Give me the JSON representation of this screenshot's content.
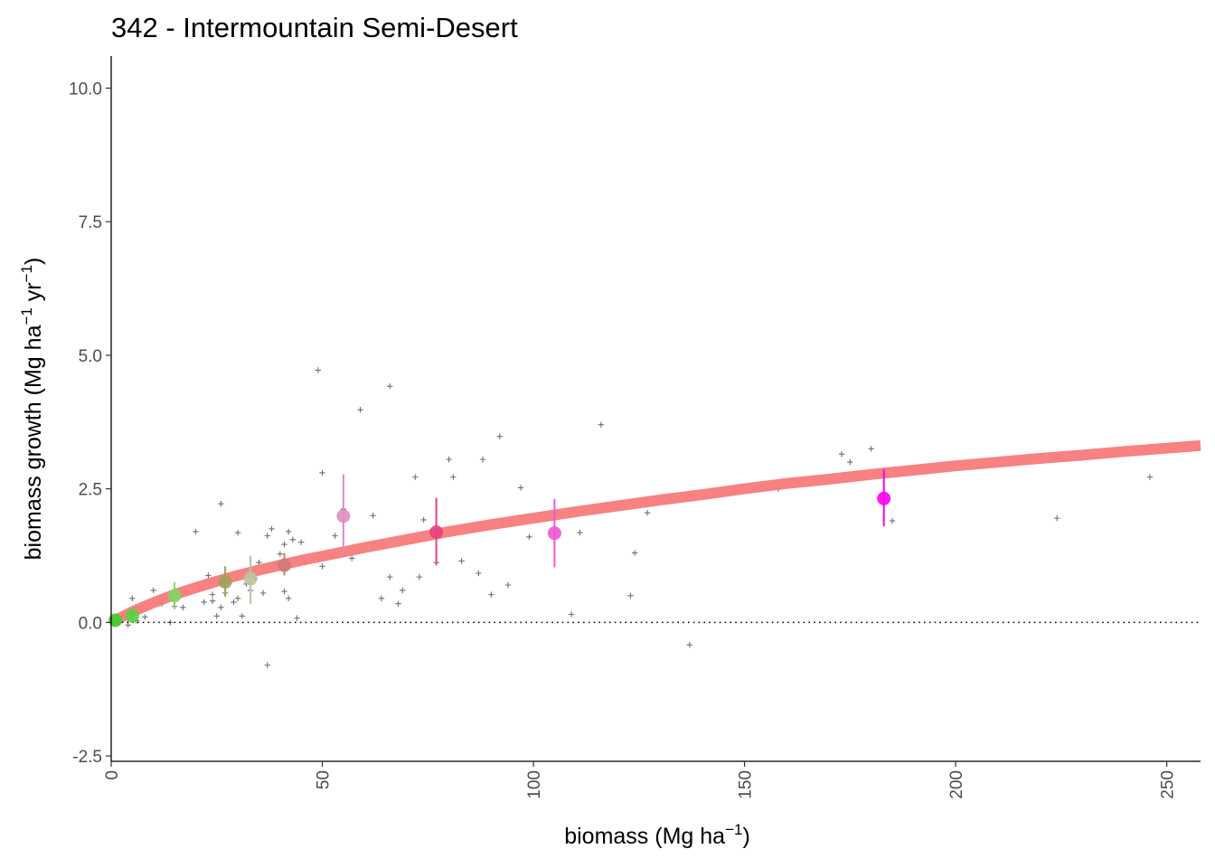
{
  "chart_data": {
    "type": "scatter",
    "title": "342 - Intermountain Semi-Desert",
    "xlabel": {
      "main": "biomass (Mg ha",
      "sup": "−1",
      "close": ")"
    },
    "ylabel": {
      "main": "biomass growth (Mg ha",
      "sup1": "−1",
      "mid": " yr",
      "sup2": "−1",
      "close": ")"
    },
    "xlim": [
      0,
      258
    ],
    "ylim": [
      -2.6,
      10.6
    ],
    "x_ticks": [
      0,
      50,
      100,
      150,
      200,
      250
    ],
    "x_tick_labels": [
      "0",
      "50",
      "100",
      "150",
      "200",
      "250"
    ],
    "y_ticks": [
      -2.5,
      0,
      2.5,
      5,
      7.5,
      10
    ],
    "y_tick_labels": [
      "-2.5",
      "0.0",
      "2.5",
      "5.0",
      "7.5",
      "10.0"
    ],
    "grid": false,
    "reference_line": {
      "y": 0,
      "style": "dotted"
    },
    "colors": {
      "fit": "#f87a7a",
      "raw_points": "#6f6f6f",
      "axis": "#000000"
    },
    "fit_curve": {
      "x": [
        0,
        5,
        10,
        15,
        20,
        25,
        30,
        35,
        40,
        45,
        50,
        55,
        60,
        70,
        80,
        90,
        100,
        110,
        120,
        130,
        140,
        150,
        160,
        170,
        180,
        190,
        200,
        210,
        220,
        230,
        240,
        250,
        258
      ],
      "y": [
        0.0,
        0.2,
        0.37,
        0.52,
        0.65,
        0.77,
        0.88,
        0.98,
        1.07,
        1.16,
        1.24,
        1.32,
        1.4,
        1.55,
        1.7,
        1.83,
        1.95,
        2.07,
        2.18,
        2.29,
        2.39,
        2.5,
        2.6,
        2.68,
        2.77,
        2.85,
        2.93,
        3.0,
        3.07,
        3.13,
        3.2,
        3.26,
        3.31
      ]
    },
    "binned_means": [
      {
        "x": 1,
        "y": 0.04,
        "lo": 0.0,
        "hi": 0.09,
        "color": "#3fcf2f"
      },
      {
        "x": 5,
        "y": 0.12,
        "lo": 0.02,
        "hi": 0.26,
        "color": "#55d23c"
      },
      {
        "x": 15,
        "y": 0.5,
        "lo": 0.29,
        "hi": 0.75,
        "color": "#7fd65f"
      },
      {
        "x": 27,
        "y": 0.76,
        "lo": 0.48,
        "hi": 1.05,
        "color": "#a1a05a"
      },
      {
        "x": 33,
        "y": 0.82,
        "lo": 0.35,
        "hi": 1.25,
        "color": "#bcc2a0"
      },
      {
        "x": 41,
        "y": 1.07,
        "lo": 0.88,
        "hi": 1.3,
        "color": "#d07a78"
      },
      {
        "x": 55,
        "y": 1.99,
        "lo": 1.3,
        "hi": 2.77,
        "color": "#d98fc2"
      },
      {
        "x": 77,
        "y": 1.69,
        "lo": 1.07,
        "hi": 2.33,
        "color": "#e8417f"
      },
      {
        "x": 105,
        "y": 1.67,
        "lo": 1.03,
        "hi": 2.31,
        "color": "#ee55d6"
      },
      {
        "x": 183,
        "y": 2.32,
        "lo": 1.8,
        "hi": 2.87,
        "color": "#ff00ee"
      }
    ],
    "raw_points": {
      "x": [
        1,
        2,
        3,
        4,
        4,
        5,
        6,
        7,
        8,
        10,
        12,
        14,
        15,
        17,
        18,
        20,
        21,
        22,
        23,
        24,
        24,
        25,
        26,
        26,
        27,
        28,
        29,
        30,
        30,
        31,
        32,
        33,
        34,
        35,
        36,
        37,
        37,
        38,
        39,
        40,
        41,
        41,
        42,
        42,
        43,
        44,
        45,
        46,
        49,
        50,
        50,
        52,
        53,
        55,
        57,
        59,
        62,
        64,
        66,
        66,
        68,
        69,
        72,
        73,
        74,
        77,
        80,
        81,
        83,
        87,
        88,
        90,
        92,
        93,
        94,
        97,
        99,
        109,
        111,
        116,
        123,
        124,
        127,
        137,
        158,
        173,
        175,
        180,
        185,
        224,
        224,
        246
      ],
      "y": [
        0.02,
        0.08,
        0.12,
        0.05,
        -0.05,
        0.45,
        0.03,
        0.25,
        0.1,
        0.6,
        0.35,
        0.0,
        0.3,
        0.28,
        0.55,
        1.7,
        0.65,
        0.38,
        0.88,
        0.4,
        0.52,
        0.12,
        0.28,
        2.22,
        0.55,
        0.8,
        0.38,
        1.68,
        0.45,
        0.12,
        0.72,
        0.6,
        0.82,
        1.12,
        0.55,
        -0.8,
        1.62,
        1.75,
        1.1,
        1.28,
        1.46,
        0.58,
        1.7,
        0.45,
        1.55,
        0.08,
        1.5,
        1.12,
        4.72,
        1.05,
        2.8,
        1.25,
        1.62,
        2.12,
        1.2,
        3.98,
        2.0,
        0.45,
        4.42,
        0.85,
        0.35,
        0.6,
        2.72,
        0.85,
        1.92,
        1.12,
        3.05,
        2.72,
        1.15,
        0.92,
        3.05,
        0.52,
        3.48,
        1.85,
        0.7,
        2.52,
        1.6,
        0.15,
        1.68,
        3.7,
        0.5,
        1.3,
        2.05,
        -0.42,
        2.5,
        3.15,
        3.0,
        3.25,
        1.9,
        3.08,
        1.95,
        2.72
      ]
    }
  }
}
